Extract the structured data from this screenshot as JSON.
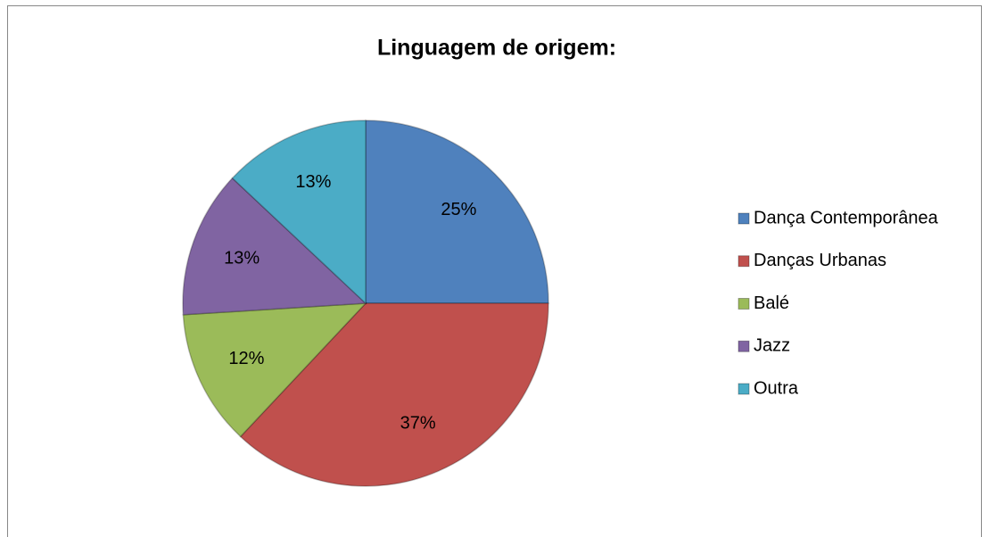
{
  "chart_data": {
    "type": "pie",
    "title": "Linguagem de origem:",
    "categories": [
      "Dança Contemporânea",
      "Danças Urbanas",
      "Balé",
      "Jazz",
      "Outra"
    ],
    "values": [
      25,
      37,
      12,
      13,
      13
    ],
    "value_labels": [
      "25%",
      "37%",
      "12%",
      "13%",
      "13%"
    ],
    "colors": [
      "#4f81bd",
      "#c0504d",
      "#9bbb59",
      "#8064a2",
      "#4bacc6"
    ],
    "legend": "right"
  }
}
